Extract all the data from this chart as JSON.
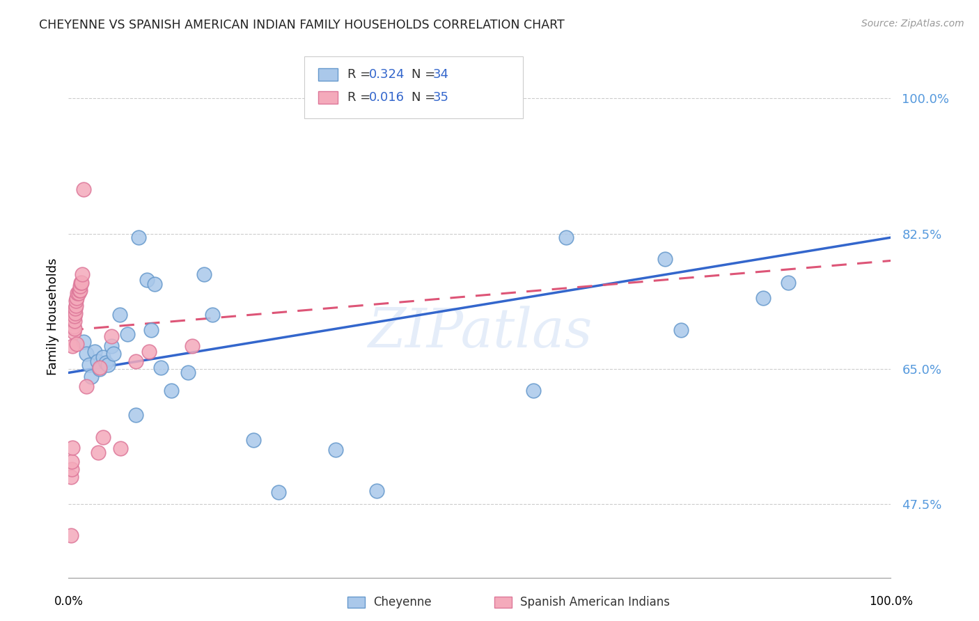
{
  "title": "CHEYENNE VS SPANISH AMERICAN INDIAN FAMILY HOUSEHOLDS CORRELATION CHART",
  "source": "Source: ZipAtlas.com",
  "ylabel": "Family Households",
  "yticks": [
    0.475,
    0.65,
    0.825,
    1.0
  ],
  "ytick_labels": [
    "47.5%",
    "65.0%",
    "82.5%",
    "100.0%"
  ],
  "xlim": [
    0.0,
    1.0
  ],
  "ylim": [
    0.38,
    1.055
  ],
  "watermark": "ZIPatlas",
  "cheyenne_color": "#aac8ea",
  "cheyenne_edge": "#6699cc",
  "spanish_color": "#f4aabb",
  "spanish_edge": "#dd7799",
  "cheyenne_line_color": "#3366cc",
  "spanish_line_color": "#dd5577",
  "cheyenne_line_x0": 0.0,
  "cheyenne_line_y0": 0.645,
  "cheyenne_line_x1": 1.0,
  "cheyenne_line_y1": 0.82,
  "spanish_line_x0": 0.0,
  "spanish_line_y0": 0.7,
  "spanish_line_x1": 1.0,
  "spanish_line_y1": 0.79,
  "cheyenne_points_x": [
    0.018,
    0.022,
    0.025,
    0.028,
    0.032,
    0.035,
    0.038,
    0.042,
    0.045,
    0.048,
    0.052,
    0.055,
    0.062,
    0.072,
    0.082,
    0.085,
    0.095,
    0.1,
    0.105,
    0.112,
    0.125,
    0.145,
    0.165,
    0.175,
    0.225,
    0.255,
    0.325,
    0.375,
    0.565,
    0.605,
    0.725,
    0.745,
    0.845,
    0.875
  ],
  "cheyenne_points_y": [
    0.685,
    0.67,
    0.655,
    0.64,
    0.672,
    0.66,
    0.65,
    0.665,
    0.658,
    0.655,
    0.68,
    0.67,
    0.72,
    0.695,
    0.59,
    0.82,
    0.765,
    0.7,
    0.76,
    0.652,
    0.622,
    0.645,
    0.772,
    0.72,
    0.558,
    0.49,
    0.545,
    0.492,
    0.622,
    0.82,
    0.792,
    0.7,
    0.742,
    0.762
  ],
  "spanish_points_x": [
    0.003,
    0.003,
    0.004,
    0.004,
    0.005,
    0.005,
    0.006,
    0.006,
    0.007,
    0.007,
    0.007,
    0.008,
    0.008,
    0.009,
    0.009,
    0.01,
    0.01,
    0.011,
    0.012,
    0.013,
    0.014,
    0.014,
    0.015,
    0.016,
    0.017,
    0.018,
    0.022,
    0.036,
    0.038,
    0.042,
    0.052,
    0.063,
    0.082,
    0.098,
    0.15
  ],
  "spanish_points_y": [
    0.435,
    0.51,
    0.52,
    0.53,
    0.548,
    0.68,
    0.698,
    0.705,
    0.702,
    0.712,
    0.718,
    0.722,
    0.728,
    0.732,
    0.738,
    0.682,
    0.742,
    0.748,
    0.748,
    0.752,
    0.752,
    0.757,
    0.762,
    0.762,
    0.772,
    0.882,
    0.627,
    0.542,
    0.652,
    0.562,
    0.692,
    0.547,
    0.66,
    0.672,
    0.68
  ]
}
